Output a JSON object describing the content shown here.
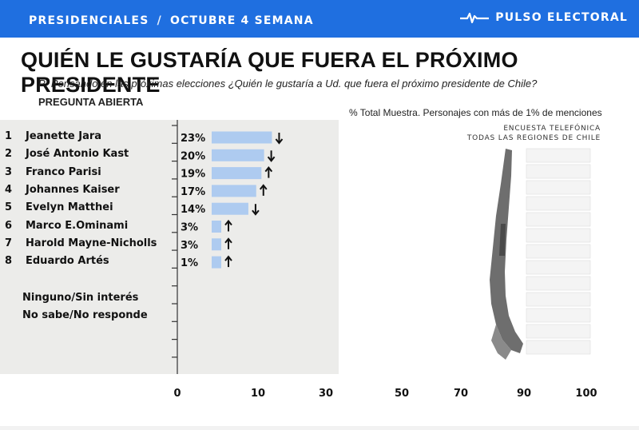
{
  "header": {
    "left_label": "PRESIDENCIALES",
    "left_sep": "/",
    "left_period": "OCTUBRE 4 SEMANA",
    "brand": "PULSO ELECTORAL",
    "brand_icon": "pulse-icon"
  },
  "title": "QUIÉN LE GUSTARÍA QUE FUERA EL PRÓXIMO PRESIDENTE",
  "question": "P: Pensando en las próximas elecciones ¿Quién le gustaría a Ud. que fuera el próximo presidente de Chile?",
  "question_type": "PREGUNTA ABIERTA",
  "sample_note": "% Total Muestra. Personajes con más de 1% de menciones",
  "survey_type_line1": "ENCUESTA TELEFÓNICA",
  "survey_type_line2": "TODAS LAS REGIONES DE CHILE",
  "extra_rows": [
    "Ninguno/Sin interés",
    "No sabe/No responde"
  ],
  "colors": {
    "bar": "#aecbf0",
    "panel": "#ececea",
    "header": "#1f6fe0"
  },
  "chart_data": {
    "type": "bar",
    "orientation": "horizontal",
    "categories": [
      "Jeanette Jara",
      "José Antonio Kast",
      "Franco Parisi",
      "Johannes Kaiser",
      "Evelyn Matthei",
      "Marco E.Ominami",
      "Harold Mayne-Nicholls",
      "Eduardo Artés"
    ],
    "ranks": [
      "1",
      "2",
      "3",
      "4",
      "5",
      "6",
      "7",
      "8"
    ],
    "values": [
      23,
      20,
      19,
      17,
      14,
      3,
      3,
      1
    ],
    "value_labels": [
      "23%",
      "20%",
      "19%",
      "17%",
      "14%",
      "3%",
      "3%",
      "1%"
    ],
    "trend": [
      "down",
      "down",
      "up",
      "up",
      "down",
      "up",
      "up",
      "up"
    ],
    "xticks": [
      0,
      10,
      30,
      50,
      70,
      90,
      100
    ],
    "grid": false
  }
}
